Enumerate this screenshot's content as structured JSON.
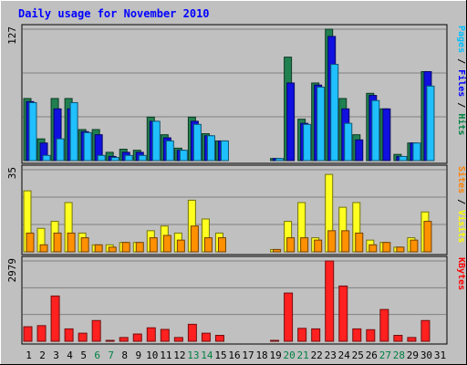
{
  "chart_data": {
    "type": "bar",
    "title": "Daily usage for November 2010",
    "categories": [
      "1",
      "2",
      "3",
      "4",
      "5",
      "6",
      "7",
      "8",
      "9",
      "10",
      "11",
      "12",
      "13",
      "14",
      "15",
      "16",
      "17",
      "18",
      "19",
      "20",
      "21",
      "22",
      "23",
      "24",
      "25",
      "26",
      "27",
      "28",
      "29",
      "30",
      "31"
    ],
    "weekend_categories": [
      "6",
      "7",
      "13",
      "14",
      "20",
      "21",
      "27",
      "28"
    ],
    "panels": [
      {
        "id": "top",
        "ymax_label": "127",
        "ymax": 127,
        "side_labels": [
          {
            "text": "Pages",
            "color": "#00c0ff"
          },
          {
            "text": " / ",
            "color": "#000000"
          },
          {
            "text": "Files",
            "color": "#0000ff"
          },
          {
            "text": " / ",
            "color": "#000000"
          },
          {
            "text": "Hits",
            "color": "#008040"
          }
        ],
        "series": [
          {
            "name": "Hits",
            "color": "#208050",
            "values": [
              60,
              21,
              60,
              60,
              30,
              30,
              8,
              11,
              10,
              42,
              25,
              12,
              42,
              26,
              19,
              0,
              0,
              0,
              2,
              100,
              40,
              75,
              127,
              60,
              25,
              65,
              50,
              6,
              17,
              86,
              0
            ]
          },
          {
            "name": "Files",
            "color": "#1010e0",
            "values": [
              57,
              17,
              50,
              50,
              28,
              25,
              4,
              8,
              8,
              38,
              22,
              10,
              38,
              24,
              19,
              0,
              0,
              0,
              2,
              75,
              36,
              73,
              120,
              50,
              20,
              63,
              50,
              4,
              17,
              86,
              0
            ]
          },
          {
            "name": "Pages",
            "color": "#20c0ff",
            "values": [
              56,
              5,
              21,
              56,
              27,
              5,
              3,
              5,
              5,
              38,
              19,
              10,
              35,
              24,
              19,
              0,
              0,
              0,
              2,
              0,
              35,
              71,
              93,
              36,
              0,
              58,
              0,
              4,
              17,
              72,
              0
            ]
          }
        ]
      },
      {
        "id": "middle",
        "ymax_label": "35",
        "ymax": 35,
        "side_labels": [
          {
            "text": "Sites",
            "color": "#ff8000"
          },
          {
            "text": " / ",
            "color": "#000000"
          },
          {
            "text": "Visits",
            "color": "#ffff00"
          }
        ],
        "series": [
          {
            "name": "Visits",
            "color": "#ffff20",
            "values": [
              26,
              10,
              13,
              21,
              8,
              3,
              3,
              4,
              4,
              9,
              11,
              8,
              22,
              14,
              8,
              0,
              0,
              0,
              1,
              13,
              21,
              6,
              33,
              19,
              21,
              5,
              4,
              2,
              6,
              17,
              0
            ]
          },
          {
            "name": "Sites",
            "color": "#ff9000",
            "values": [
              8,
              3,
              8,
              8,
              6,
              3,
              2,
              4,
              4,
              6,
              7,
              5,
              11,
              6,
              6,
              0,
              0,
              0,
              1,
              6,
              6,
              5,
              9,
              9,
              8,
              3,
              4,
              2,
              5,
              13,
              0
            ]
          }
        ]
      },
      {
        "id": "bottom",
        "ymax_label": "2979",
        "ymax": 2979,
        "side_labels": [
          {
            "text": "KBytes",
            "color": "#ff0000"
          }
        ],
        "series": [
          {
            "name": "KBytes",
            "color": "#ff2020",
            "values": [
              540,
              580,
              1680,
              460,
              300,
              770,
              30,
              140,
              270,
              500,
              440,
              140,
              630,
              300,
              220,
              0,
              0,
              0,
              30,
              1790,
              480,
              460,
              2979,
              2050,
              460,
              430,
              1180,
              220,
              140,
              770,
              0
            ]
          }
        ]
      }
    ],
    "legend": "right",
    "grid": true
  }
}
